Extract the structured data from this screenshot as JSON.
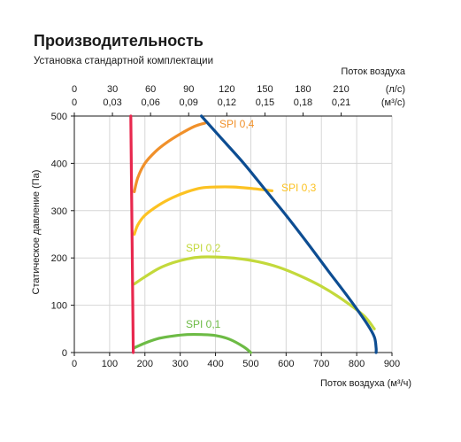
{
  "header": {
    "title": "Производительность",
    "subtitle": "Установка стандартной комплектации"
  },
  "chart_data": {
    "type": "line",
    "xlabel": "Поток воздуха (м³/ч)",
    "ylabel": "Статическое давление (Па)",
    "x_ticks": [
      0,
      100,
      200,
      300,
      400,
      500,
      600,
      700,
      800,
      900
    ],
    "y_ticks": [
      0,
      100,
      200,
      300,
      400,
      500
    ],
    "xlim": [
      0,
      900
    ],
    "ylim": [
      0,
      500
    ],
    "secondary_axis": {
      "label": "Поток воздуха",
      "row1": {
        "values": [
          "0",
          "30",
          "60",
          "90",
          "120",
          "150",
          "180",
          "210"
        ],
        "unit": "(л/с)"
      },
      "row2": {
        "values": [
          "0",
          "0,03",
          "0,06",
          "0,09",
          "0,12",
          "0,15",
          "0,18",
          "0,21"
        ],
        "unit": "(м³/с)"
      }
    },
    "series": [
      {
        "label": "SPI 0,4",
        "color": "#f0902a",
        "x": [
          170,
          180,
          200,
          230,
          260,
          300,
          340,
          370
        ],
        "y": [
          340,
          370,
          400,
          425,
          443,
          462,
          478,
          485
        ]
      },
      {
        "label": "SPI 0,3",
        "color": "#fcc222",
        "x": [
          170,
          180,
          200,
          240,
          280,
          320,
          360,
          400,
          450,
          500,
          560
        ],
        "y": [
          250,
          270,
          290,
          312,
          328,
          340,
          348,
          350,
          350,
          347,
          342
        ]
      },
      {
        "label": "SPI 0,2",
        "color": "#c3d93b",
        "x": [
          170,
          200,
          240,
          280,
          320,
          360,
          400,
          460,
          520,
          580,
          640,
          700,
          760,
          820,
          850
        ],
        "y": [
          145,
          160,
          178,
          190,
          198,
          202,
          202,
          199,
          192,
          180,
          162,
          140,
          112,
          78,
          50
        ]
      },
      {
        "label": "SPI 0,1",
        "color": "#6dbb45",
        "x": [
          170,
          200,
          240,
          280,
          320,
          360,
          400,
          440,
          480,
          500
        ],
        "y": [
          10,
          20,
          30,
          35,
          38,
          38,
          36,
          28,
          12,
          0
        ]
      },
      {
        "label": "",
        "color": "#0d4d92",
        "x": [
          360,
          420,
          480,
          540,
          600,
          660,
          720,
          780,
          830,
          850,
          855,
          855
        ],
        "y": [
          500,
          450,
          400,
          345,
          290,
          232,
          172,
          113,
          60,
          33,
          10,
          0
        ]
      },
      {
        "label": "",
        "color": "#e8284e",
        "x": [
          167,
          160
        ],
        "y": [
          0,
          500
        ]
      }
    ]
  }
}
